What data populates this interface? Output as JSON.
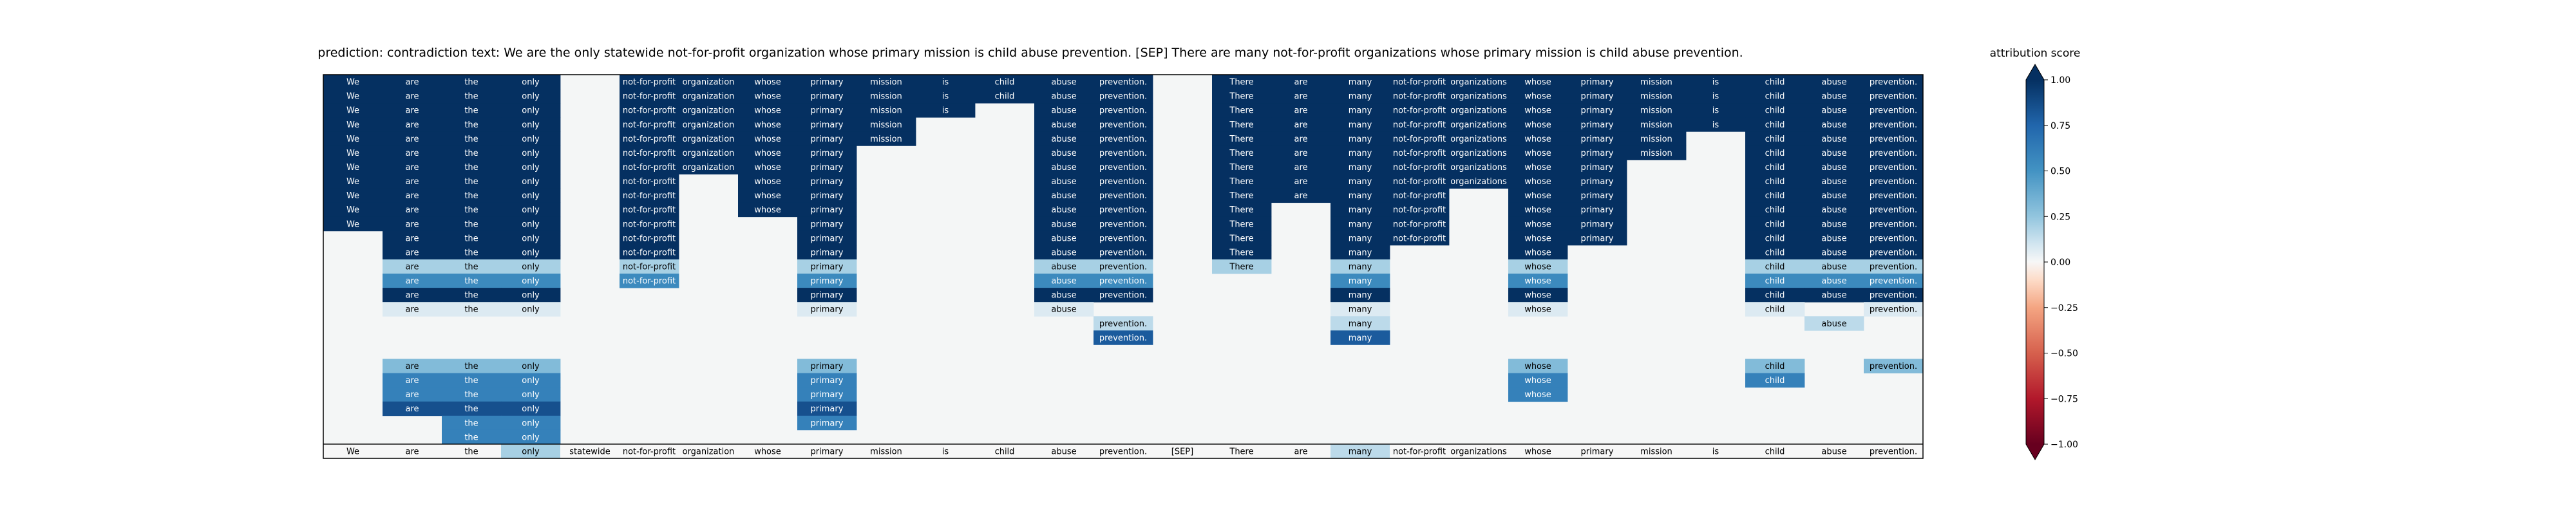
{
  "chart_data": {
    "type": "heatmap",
    "title": "prediction:  contradiction     text:  We are the only statewide not-for-profit organization whose primary mission is child abuse prevention. [SEP] There are many not-for-profit organizations whose primary mission is child abuse prevention.",
    "tokens": [
      "We",
      "are",
      "the",
      "only",
      "statewide",
      "not-for-profit",
      "organization",
      "whose",
      "primary",
      "mission",
      "is",
      "child",
      "abuse",
      "prevention.",
      "[SEP]",
      "There",
      "are",
      "many",
      "not-for-profit",
      "organizations",
      "whose",
      "primary",
      "mission",
      "is",
      "child",
      "abuse",
      "prevention."
    ],
    "last_row_values": [
      0,
      0,
      0,
      0.2,
      0,
      0,
      0,
      0,
      0,
      0,
      0,
      0,
      0,
      0,
      0,
      0,
      0,
      0.15,
      0,
      0,
      0,
      0,
      0,
      0,
      0,
      0,
      0
    ],
    "rows": [
      [
        1,
        1,
        1,
        1,
        null,
        1,
        1,
        1,
        1,
        1,
        1,
        1,
        1,
        1,
        null,
        1,
        1,
        1,
        1,
        1,
        1,
        1,
        1,
        1,
        1,
        1,
        1
      ],
      [
        1,
        1,
        1,
        1,
        null,
        1,
        1,
        1,
        1,
        1,
        1,
        1,
        1,
        1,
        null,
        1,
        1,
        1,
        1,
        1,
        1,
        1,
        1,
        1,
        1,
        1,
        1
      ],
      [
        1,
        1,
        1,
        1,
        null,
        1,
        1,
        1,
        1,
        1,
        1,
        null,
        1,
        1,
        null,
        1,
        1,
        1,
        1,
        1,
        1,
        1,
        1,
        1,
        1,
        1,
        1
      ],
      [
        1,
        1,
        1,
        1,
        null,
        1,
        1,
        1,
        1,
        1,
        null,
        null,
        1,
        1,
        null,
        1,
        1,
        1,
        1,
        1,
        1,
        1,
        1,
        1,
        1,
        1,
        1
      ],
      [
        1,
        1,
        1,
        1,
        null,
        1,
        1,
        1,
        1,
        1,
        null,
        null,
        1,
        1,
        null,
        1,
        1,
        1,
        1,
        1,
        1,
        1,
        1,
        null,
        1,
        1,
        1
      ],
      [
        1,
        1,
        1,
        1,
        null,
        1,
        1,
        1,
        1,
        null,
        null,
        null,
        1,
        1,
        null,
        1,
        1,
        1,
        1,
        1,
        1,
        1,
        1,
        null,
        1,
        1,
        1
      ],
      [
        1,
        1,
        1,
        1,
        null,
        1,
        1,
        1,
        1,
        null,
        null,
        null,
        1,
        1,
        null,
        1,
        1,
        1,
        1,
        1,
        1,
        1,
        null,
        null,
        1,
        1,
        1
      ],
      [
        1,
        1,
        1,
        1,
        null,
        1,
        null,
        1,
        1,
        null,
        null,
        null,
        1,
        1,
        null,
        1,
        1,
        1,
        1,
        1,
        1,
        1,
        null,
        null,
        1,
        1,
        1
      ],
      [
        1,
        1,
        1,
        1,
        null,
        1,
        null,
        1,
        1,
        null,
        null,
        null,
        1,
        1,
        null,
        1,
        1,
        1,
        1,
        null,
        1,
        1,
        null,
        null,
        1,
        1,
        1
      ],
      [
        1,
        1,
        1,
        1,
        null,
        1,
        null,
        1,
        1,
        null,
        null,
        null,
        1,
        1,
        null,
        1,
        null,
        1,
        1,
        null,
        1,
        1,
        null,
        null,
        1,
        1,
        1
      ],
      [
        1,
        1,
        1,
        1,
        null,
        1,
        null,
        null,
        1,
        null,
        null,
        null,
        1,
        1,
        null,
        1,
        null,
        1,
        1,
        null,
        1,
        1,
        null,
        null,
        1,
        1,
        1
      ],
      [
        null,
        1,
        1,
        1,
        null,
        1,
        null,
        null,
        1,
        null,
        null,
        null,
        1,
        1,
        null,
        1,
        null,
        1,
        1,
        null,
        1,
        1,
        null,
        null,
        1,
        1,
        1
      ],
      [
        null,
        1,
        1,
        1,
        null,
        1,
        null,
        null,
        1,
        null,
        null,
        null,
        1,
        1,
        null,
        1,
        null,
        1,
        null,
        null,
        1,
        null,
        null,
        null,
        1,
        1,
        1
      ],
      [
        null,
        0.2,
        0.2,
        0.2,
        null,
        0.2,
        null,
        null,
        0.2,
        null,
        null,
        null,
        0.2,
        0.2,
        null,
        0.2,
        null,
        0.2,
        null,
        null,
        0.2,
        null,
        null,
        null,
        0.2,
        0.2,
        0.2
      ],
      [
        null,
        0.55,
        0.55,
        0.55,
        null,
        0.55,
        null,
        null,
        0.55,
        null,
        null,
        null,
        0.55,
        0.55,
        null,
        null,
        null,
        0.55,
        null,
        null,
        0.55,
        null,
        null,
        null,
        0.55,
        0.55,
        0.55
      ],
      [
        null,
        1,
        1,
        1,
        null,
        null,
        null,
        null,
        1,
        null,
        null,
        null,
        1,
        1,
        null,
        null,
        null,
        1,
        null,
        null,
        1,
        null,
        null,
        null,
        1,
        1,
        1
      ],
      [
        null,
        0.07,
        0.07,
        0.07,
        null,
        null,
        null,
        null,
        0.07,
        null,
        null,
        null,
        0.07,
        null,
        null,
        null,
        null,
        0.07,
        null,
        null,
        0.07,
        null,
        null,
        null,
        0.07,
        null,
        0.07
      ],
      [
        null,
        null,
        null,
        null,
        null,
        null,
        null,
        null,
        null,
        null,
        null,
        null,
        null,
        0.15,
        null,
        null,
        null,
        0.15,
        null,
        null,
        null,
        null,
        null,
        null,
        null,
        0.15,
        null
      ],
      [
        null,
        null,
        null,
        null,
        null,
        null,
        null,
        null,
        null,
        null,
        null,
        null,
        null,
        0.8,
        null,
        null,
        null,
        0.8,
        null,
        null,
        null,
        null,
        null,
        null,
        null,
        null,
        null
      ],
      [
        null,
        null,
        null,
        null,
        null,
        null,
        null,
        null,
        null,
        null,
        null,
        null,
        null,
        null,
        null,
        null,
        null,
        null,
        null,
        null,
        null,
        null,
        null,
        null,
        null,
        null,
        null
      ],
      [
        null,
        0.3,
        0.3,
        0.3,
        null,
        null,
        null,
        null,
        0.3,
        null,
        null,
        null,
        null,
        null,
        null,
        null,
        null,
        null,
        null,
        null,
        0.3,
        null,
        null,
        null,
        0.3,
        null,
        0.3
      ],
      [
        null,
        0.6,
        0.6,
        0.6,
        null,
        null,
        null,
        null,
        0.6,
        null,
        null,
        null,
        null,
        null,
        null,
        null,
        null,
        null,
        null,
        null,
        0.6,
        null,
        null,
        null,
        0.6,
        null,
        null
      ],
      [
        null,
        0.6,
        0.6,
        0.6,
        null,
        null,
        null,
        null,
        0.6,
        null,
        null,
        null,
        null,
        null,
        null,
        null,
        null,
        null,
        null,
        null,
        0.6,
        null,
        null,
        null,
        null,
        null,
        null
      ],
      [
        null,
        0.85,
        0.85,
        0.85,
        null,
        null,
        null,
        null,
        0.85,
        null,
        null,
        null,
        null,
        null,
        null,
        null,
        null,
        null,
        null,
        null,
        null,
        null,
        null,
        null,
        null,
        null,
        null
      ],
      [
        null,
        null,
        0.6,
        0.6,
        null,
        null,
        null,
        null,
        0.6,
        null,
        null,
        null,
        null,
        null,
        null,
        null,
        null,
        null,
        null,
        null,
        null,
        null,
        null,
        null,
        null,
        null,
        null
      ],
      [
        null,
        null,
        0.6,
        0.6,
        null,
        null,
        null,
        null,
        null,
        null,
        null,
        null,
        null,
        null,
        null,
        null,
        null,
        null,
        null,
        null,
        null,
        null,
        null,
        null,
        null,
        null,
        null
      ]
    ],
    "colorbar": {
      "label": "attribution score",
      "range": [
        -1,
        1
      ],
      "ticks": [
        1.0,
        0.75,
        0.5,
        0.25,
        0.0,
        -0.25,
        -0.5,
        -0.75,
        -1.0
      ],
      "tick_labels": [
        "1.00",
        "0.75",
        "0.50",
        "0.25",
        "0.00",
        "−0.25",
        "−0.50",
        "−0.75",
        "−1.00"
      ]
    },
    "colors": {
      "background": "#f4f6f6",
      "positive_max": "#053061",
      "zero": "#f7f7f7",
      "negative_max": "#67001f"
    }
  }
}
